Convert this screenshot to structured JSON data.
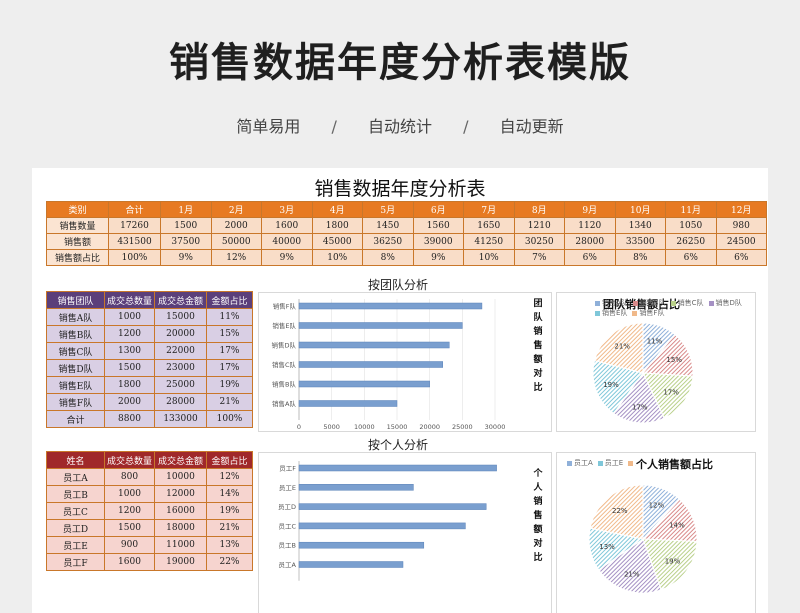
{
  "hero": {
    "title": "销售数据年度分析表模版",
    "features": [
      "简单易用",
      "自动统计",
      "自动更新"
    ],
    "separator": "/"
  },
  "sheet": {
    "title": "销售数据年度分析表",
    "summary": {
      "headers": [
        "类别",
        "合计",
        "1月",
        "2月",
        "3月",
        "4月",
        "5月",
        "6月",
        "7月",
        "8月",
        "9月",
        "10月",
        "11月",
        "12月"
      ],
      "rows": [
        [
          "销售数量",
          "17260",
          "1500",
          "2000",
          "1600",
          "1800",
          "1450",
          "1560",
          "1650",
          "1210",
          "1120",
          "1340",
          "1050",
          "980"
        ],
        [
          "销售额",
          "431500",
          "37500",
          "50000",
          "40000",
          "45000",
          "36250",
          "39000",
          "41250",
          "30250",
          "28000",
          "33500",
          "26250",
          "24500"
        ],
        [
          "销售额占比",
          "100%",
          "9%",
          "12%",
          "9%",
          "10%",
          "8%",
          "9%",
          "10%",
          "7%",
          "6%",
          "8%",
          "6%",
          "6%"
        ]
      ]
    },
    "team_section_label": "按团队分析",
    "person_section_label": "按个人分析",
    "team_table": {
      "headers": [
        "销售团队",
        "成交总数量",
        "成交总金额",
        "金额占比"
      ],
      "rows": [
        [
          "销售A队",
          "1000",
          "15000",
          "11%"
        ],
        [
          "销售B队",
          "1200",
          "20000",
          "15%"
        ],
        [
          "销售C队",
          "1300",
          "22000",
          "17%"
        ],
        [
          "销售D队",
          "1500",
          "23000",
          "17%"
        ],
        [
          "销售E队",
          "1800",
          "25000",
          "19%"
        ],
        [
          "销售F队",
          "2000",
          "28000",
          "21%"
        ],
        [
          "合计",
          "8800",
          "133000",
          "100%"
        ]
      ]
    },
    "person_table": {
      "headers": [
        "姓名",
        "成交总数量",
        "成交总金额",
        "金额占比"
      ],
      "rows": [
        [
          "员工A",
          "800",
          "10000",
          "12%"
        ],
        [
          "员工B",
          "1000",
          "12000",
          "14%"
        ],
        [
          "员工C",
          "1200",
          "16000",
          "19%"
        ],
        [
          "员工D",
          "1500",
          "18000",
          "21%"
        ],
        [
          "员工E",
          "900",
          "11000",
          "13%"
        ],
        [
          "员工F",
          "1600",
          "19000",
          "22%"
        ]
      ]
    }
  },
  "chart_data": [
    {
      "type": "bar",
      "orientation": "horizontal",
      "title": "团队销售额对比",
      "categories": [
        "销售F队",
        "销售E队",
        "销售D队",
        "销售C队",
        "销售B队",
        "销售A队"
      ],
      "values": [
        28000,
        25000,
        23000,
        22000,
        20000,
        15000
      ],
      "xlim": [
        0,
        30000
      ],
      "xticks": [
        "0",
        "5000",
        "10000",
        "15000",
        "20000",
        "25000",
        "30000"
      ],
      "color": "#7a9fcf"
    },
    {
      "type": "pie",
      "title": "团队销售额占比",
      "labels": [
        "销售A队",
        "销售B队",
        "销售C队",
        "销售D队",
        "销售E队",
        "销售F队"
      ],
      "legend_labels": [
        "销售A队",
        "销售B队",
        "销售C队",
        "销售D队",
        "销售E队",
        "销售F队"
      ],
      "values": [
        11,
        15,
        17,
        17,
        19,
        21
      ],
      "value_labels": [
        "11%",
        "15%",
        "17%",
        "17%",
        "19%",
        "21%"
      ],
      "colors": [
        "#8fb0d9",
        "#d98a8a",
        "#b9d08a",
        "#a591c4",
        "#7fc7d9",
        "#f0b98a"
      ],
      "legend": "top"
    },
    {
      "type": "bar",
      "orientation": "horizontal",
      "title": "个人销售额对比",
      "categories": [
        "员工F",
        "员工E",
        "员工D",
        "员工C",
        "员工B",
        "员工A"
      ],
      "values": [
        19000,
        11000,
        18000,
        16000,
        12000,
        10000
      ],
      "color": "#7a9fcf"
    },
    {
      "type": "pie",
      "title": "个人销售额占比",
      "labels": [
        "员工A",
        "员工B",
        "员工C",
        "员工D",
        "员工E",
        "员工F"
      ],
      "legend_labels": [
        "员工A",
        "员工E",
        "员工F"
      ],
      "values": [
        12,
        14,
        19,
        21,
        13,
        22
      ],
      "value_labels": [
        "12%",
        "14%",
        "19%",
        "21%",
        "13%",
        "22%"
      ],
      "colors": [
        "#8fb0d9",
        "#d98a8a",
        "#b9d08a",
        "#a591c4",
        "#7fc7d9",
        "#f0b98a"
      ],
      "legend": "top"
    }
  ]
}
